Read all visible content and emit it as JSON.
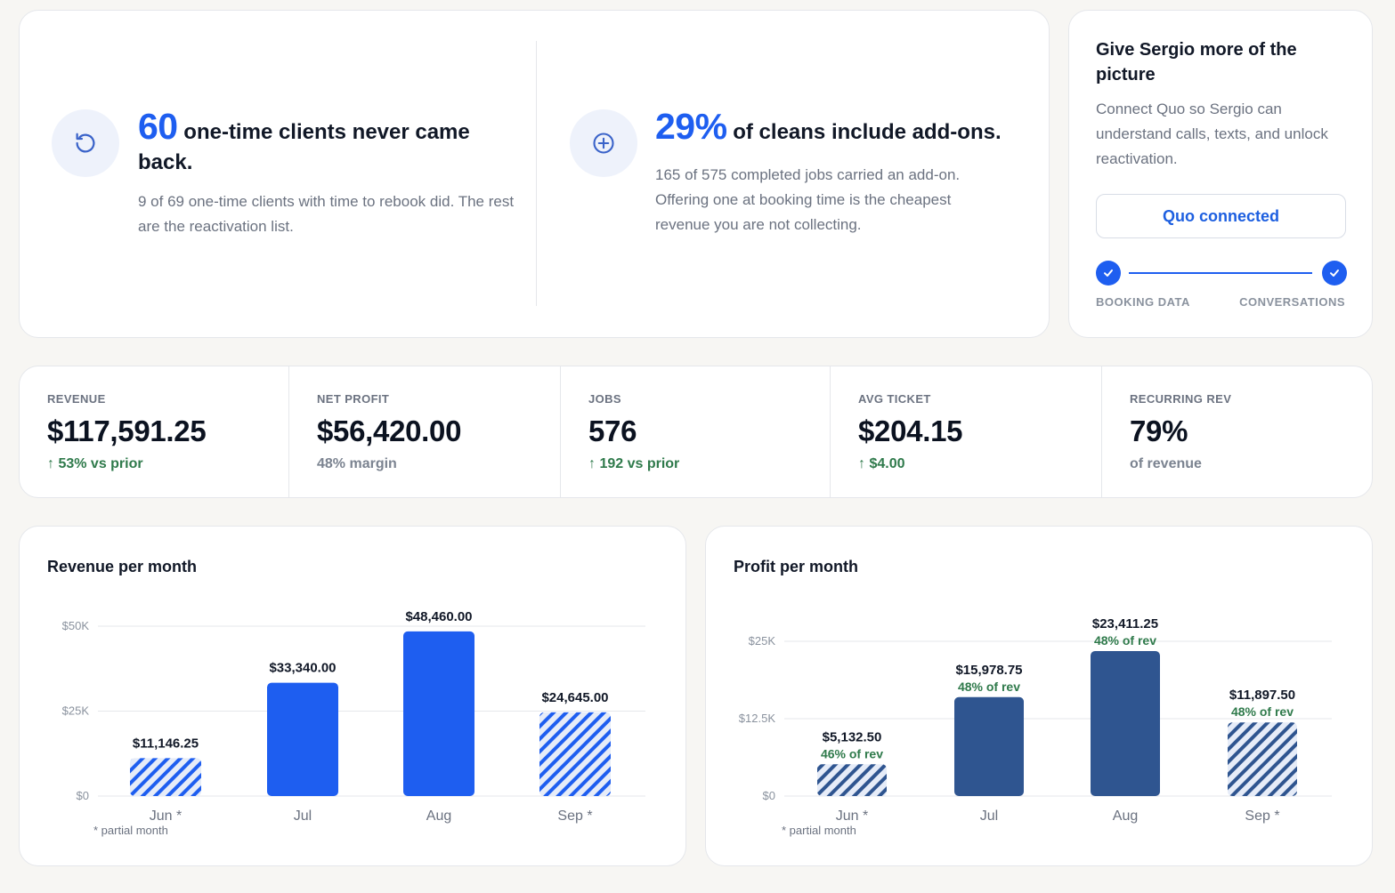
{
  "insights": [
    {
      "icon": "refresh-icon",
      "highlight": "60",
      "headline": " one-time clients never came back.",
      "body": "9 of 69 one-time clients with time to rebook did. The rest are the reactivation list."
    },
    {
      "icon": "plus-circle-icon",
      "highlight": "29%",
      "headline": " of cleans include add-ons.",
      "body": "165 of 575 completed jobs carried an add-on. Offering one at booking time is the cheapest revenue you are not collecting."
    }
  ],
  "connect": {
    "title": "Give Sergio more of the picture",
    "description": "Connect Quo so Sergio can understand calls, texts, and unlock reactivation.",
    "button_label": "Quo connected",
    "steps": [
      "BOOKING DATA",
      "CONVERSATIONS"
    ]
  },
  "kpis": [
    {
      "label": "REVENUE",
      "value": "$117,591.25",
      "sub": "↑ 53% vs prior",
      "trend": "up"
    },
    {
      "label": "NET PROFIT",
      "value": "$56,420.00",
      "sub": "48% margin",
      "trend": "neutral"
    },
    {
      "label": "JOBS",
      "value": "576",
      "sub": "↑ 192 vs prior",
      "trend": "up"
    },
    {
      "label": "AVG TICKET",
      "value": "$204.15",
      "sub": "↑ $4.00",
      "trend": "up"
    },
    {
      "label": "RECURRING REV",
      "value": "79%",
      "sub": "of revenue",
      "trend": "neutral"
    }
  ],
  "colors": {
    "accent_blue": "#1e5ef0",
    "profit_navy": "#2f5590",
    "positive_green": "#2f7a4b",
    "muted_text": "#6b7280"
  },
  "chart_data": [
    {
      "type": "bar",
      "title": "Revenue per month",
      "categories": [
        "Jun *",
        "Jul",
        "Aug",
        "Sep *"
      ],
      "values": [
        11146.25,
        33340,
        48460,
        24645
      ],
      "value_labels": [
        "$11,146.25",
        "$33,340.00",
        "$48,460.00",
        "$24,645.00"
      ],
      "partial": [
        true,
        false,
        false,
        true
      ],
      "ylim": [
        0,
        50000
      ],
      "yticks": [
        0,
        25000,
        50000
      ],
      "ytick_labels": [
        "$0",
        "$25K",
        "$50K"
      ],
      "grid": true,
      "color": "#1e5ef0",
      "note": "* partial month"
    },
    {
      "type": "bar",
      "title": "Profit per month",
      "categories": [
        "Jun *",
        "Jul",
        "Aug",
        "Sep *"
      ],
      "values": [
        5132.5,
        15978.75,
        23411.25,
        11897.5
      ],
      "value_labels": [
        "$5,132.50",
        "$15,978.75",
        "$23,411.25",
        "$11,897.50"
      ],
      "sublabels": [
        "46% of rev",
        "48% of rev",
        "48% of rev",
        "48% of rev"
      ],
      "partial": [
        true,
        false,
        false,
        true
      ],
      "ylim": [
        0,
        25000
      ],
      "yticks": [
        0,
        12500,
        25000
      ],
      "ytick_labels": [
        "$0",
        "$12.5K",
        "$25K"
      ],
      "grid": true,
      "color": "#2f5590",
      "note": "* partial month"
    }
  ]
}
